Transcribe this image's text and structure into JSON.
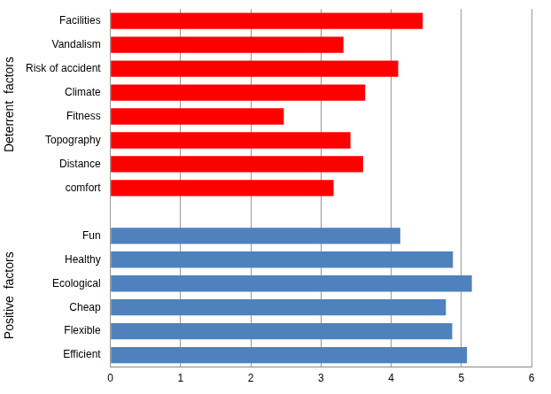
{
  "chart_data": {
    "type": "bar",
    "orientation": "horizontal",
    "grid": true,
    "categories": [
      "Facilities",
      "Vandalism",
      "Risk of accident",
      "Climate",
      "Fitness",
      "Topography",
      "Distance",
      "comfort",
      null,
      "Fun",
      "Healthy",
      "Ecological",
      "Cheap",
      "Flexible",
      "Efficient"
    ],
    "series": [
      {
        "name": "Deterrent  factors",
        "color": "#ff0000",
        "values": [
          4.45,
          3.32,
          4.1,
          3.63,
          2.47,
          3.42,
          3.6,
          3.18,
          null,
          null,
          null,
          null,
          null,
          null,
          null
        ]
      },
      {
        "name": "Positive  factors",
        "color": "#4f81bd",
        "values": [
          null,
          null,
          null,
          null,
          null,
          null,
          null,
          null,
          null,
          4.13,
          4.88,
          5.15,
          4.78,
          4.87,
          5.08
        ]
      }
    ],
    "xlim": [
      0,
      6
    ],
    "xticks": [
      0,
      1,
      2,
      3,
      4,
      5,
      6
    ]
  }
}
